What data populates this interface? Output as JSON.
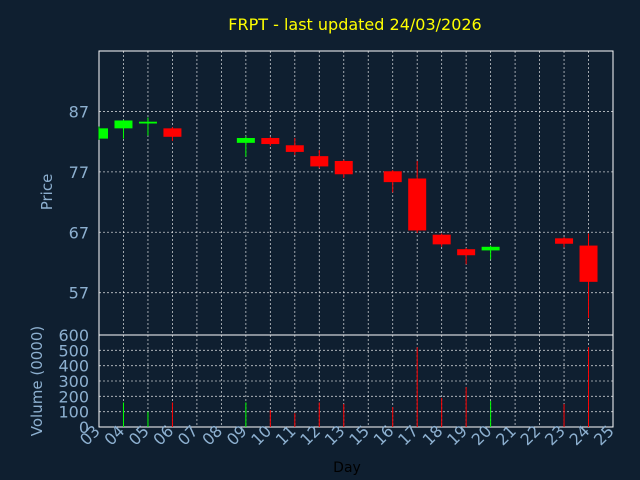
{
  "chart_data": {
    "type": "candlestick",
    "title": "FRPT - last updated 24/03/2026",
    "xlabel": "Day",
    "grid": true,
    "colors": {
      "background": "#0f1f30",
      "up": "#00ff00",
      "down": "#ff0000",
      "axis_text": "#8db0d0",
      "title": "#ffff00",
      "grid": "#ffffff"
    },
    "x_ticks": [
      "03",
      "04",
      "05",
      "06",
      "07",
      "08",
      "09",
      "10",
      "11",
      "12",
      "13",
      "15",
      "16",
      "17",
      "18",
      "19",
      "20",
      "21",
      "22",
      "23",
      "24",
      "25"
    ],
    "price": {
      "ylabel": "Price",
      "ylim": [
        50,
        97
      ],
      "y_ticks": [
        57,
        67,
        77,
        87
      ],
      "candles": [
        {
          "day": "03",
          "open": 82.5,
          "close": 84.2,
          "high": 84.5,
          "low": 82.3
        },
        {
          "day": "04",
          "open": 84.2,
          "close": 85.5,
          "high": 85.6,
          "low": 82.5
        },
        {
          "day": "05",
          "open": 85.0,
          "close": 85.3,
          "high": 86.0,
          "low": 83.0
        },
        {
          "day": "06",
          "open": 84.2,
          "close": 82.8,
          "high": 84.4,
          "low": 82.1
        },
        {
          "day": "09",
          "open": 81.8,
          "close": 82.6,
          "high": 82.9,
          "low": 79.5
        },
        {
          "day": "10",
          "open": 82.6,
          "close": 81.6,
          "high": 82.8,
          "low": 81.3
        },
        {
          "day": "11",
          "open": 81.4,
          "close": 80.3,
          "high": 82.6,
          "low": 79.8
        },
        {
          "day": "12",
          "open": 79.6,
          "close": 77.9,
          "high": 80.6,
          "low": 77.6
        },
        {
          "day": "13",
          "open": 78.8,
          "close": 76.6,
          "high": 79.0,
          "low": 76.0
        },
        {
          "day": "16",
          "open": 77.1,
          "close": 75.3,
          "high": 77.3,
          "low": 73.6
        },
        {
          "day": "17",
          "open": 75.9,
          "close": 67.3,
          "high": 78.8,
          "low": 66.9
        },
        {
          "day": "18",
          "open": 66.6,
          "close": 65.0,
          "high": 66.8,
          "low": 64.6
        },
        {
          "day": "19",
          "open": 64.2,
          "close": 63.2,
          "high": 64.4,
          "low": 61.7
        },
        {
          "day": "20",
          "open": 64.0,
          "close": 64.6,
          "high": 64.8,
          "low": 62.5
        },
        {
          "day": "23",
          "open": 66.0,
          "close": 65.1,
          "high": 66.2,
          "low": 64.5
        },
        {
          "day": "24",
          "open": 64.8,
          "close": 58.8,
          "high": 66.8,
          "low": 52.8
        }
      ]
    },
    "volume": {
      "ylabel": "Volume (0000)",
      "ylim": [
        0,
        600
      ],
      "y_ticks": [
        0,
        100,
        200,
        300,
        400,
        500,
        600
      ],
      "bars": [
        {
          "day": "04",
          "value": 160,
          "direction": "up"
        },
        {
          "day": "05",
          "value": 100,
          "direction": "up"
        },
        {
          "day": "06",
          "value": 160,
          "direction": "down"
        },
        {
          "day": "09",
          "value": 160,
          "direction": "up"
        },
        {
          "day": "10",
          "value": 110,
          "direction": "down"
        },
        {
          "day": "11",
          "value": 90,
          "direction": "down"
        },
        {
          "day": "12",
          "value": 160,
          "direction": "down"
        },
        {
          "day": "13",
          "value": 150,
          "direction": "down"
        },
        {
          "day": "16",
          "value": 130,
          "direction": "down"
        },
        {
          "day": "17",
          "value": 520,
          "direction": "down"
        },
        {
          "day": "18",
          "value": 190,
          "direction": "down"
        },
        {
          "day": "19",
          "value": 260,
          "direction": "down"
        },
        {
          "day": "20",
          "value": 170,
          "direction": "up"
        },
        {
          "day": "23",
          "value": 150,
          "direction": "down"
        },
        {
          "day": "24",
          "value": 520,
          "direction": "down"
        }
      ]
    }
  }
}
